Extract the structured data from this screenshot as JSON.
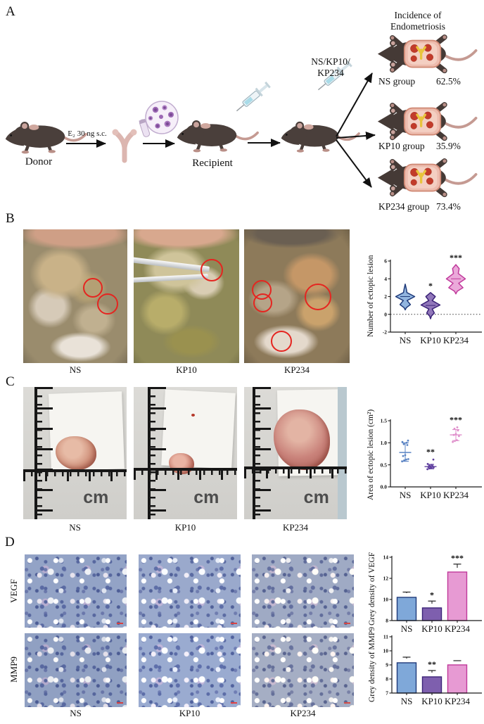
{
  "panels": {
    "A": {
      "label": "A",
      "donor": "Donor",
      "e2": "E₂ 30 ng s.c.",
      "recipient": "Recipient",
      "injection_line1": "NS/KP10/",
      "injection_line2": "KP234",
      "incidence_line1": "Incidence of",
      "incidence_line2": "Endometriosis",
      "groups": [
        {
          "name": "NS group",
          "value": "62.5%"
        },
        {
          "name": "KP10 group",
          "value": "35.9%"
        },
        {
          "name": "KP234 group",
          "value": "73.4%"
        }
      ]
    },
    "B": {
      "label": "B",
      "photo_labels": [
        "NS",
        "KP10",
        "KP234"
      ]
    },
    "C": {
      "label": "C",
      "photo_labels": [
        "NS",
        "KP10",
        "KP234"
      ],
      "ruler_unit": "cm"
    },
    "D": {
      "label": "D",
      "row_labels": [
        "VEGF",
        "MMP9"
      ],
      "col_labels": [
        "NS",
        "KP10",
        "KP234"
      ]
    }
  },
  "colors": {
    "series": [
      {
        "name": "NS",
        "fill": "#7fa8d9",
        "stroke": "#1f3a7a",
        "point": "#5b84c4"
      },
      {
        "name": "KP10",
        "fill": "#7e5fae",
        "stroke": "#3c2478",
        "point": "#5f3f9e"
      },
      {
        "name": "KP234",
        "fill": "#e79ad3",
        "stroke": "#c03a9b",
        "point": "#df8fcb"
      }
    ],
    "annotation_red": "#e52520",
    "arrow_black": "#111111"
  },
  "chart_data": [
    {
      "id": "ectopic-lesion-count-violin",
      "type": "violin",
      "title": "",
      "ylabel": "Number of ectopic lesion",
      "ylim": [
        -2,
        6
      ],
      "yticks": [
        "-2",
        "0",
        "2",
        "4",
        "6"
      ],
      "zero_line": true,
      "categories": [
        "NS",
        "KP10",
        "KP234"
      ],
      "significance": [
        "",
        "*",
        "***"
      ],
      "series": [
        {
          "name": "NS",
          "median": 2.0,
          "range": [
            0.5,
            3.4
          ],
          "profile": [
            [
              3.4,
              0
            ],
            [
              2.85,
              0.12
            ],
            [
              2.45,
              0.18
            ],
            [
              2.0,
              1.0
            ],
            [
              1.55,
              0.2
            ],
            [
              1.1,
              0.55
            ],
            [
              0.75,
              0.12
            ],
            [
              0.5,
              0
            ]
          ]
        },
        {
          "name": "KP10",
          "median": 1.0,
          "range": [
            -0.5,
            2.45
          ],
          "profile": [
            [
              2.45,
              0
            ],
            [
              2.0,
              0.5
            ],
            [
              1.55,
              0.18
            ],
            [
              1.05,
              1.0
            ],
            [
              0.6,
              0.18
            ],
            [
              0.15,
              0.4
            ],
            [
              -0.2,
              0.1
            ],
            [
              -0.5,
              0
            ]
          ]
        },
        {
          "name": "KP234",
          "median": 4.0,
          "range": [
            2.3,
            5.6
          ],
          "profile": [
            [
              5.6,
              0
            ],
            [
              5.15,
              0.35
            ],
            [
              4.6,
              0.25
            ],
            [
              4.0,
              1.0
            ],
            [
              3.5,
              0.3
            ],
            [
              3.0,
              0.75
            ],
            [
              2.6,
              0.15
            ],
            [
              2.3,
              0
            ]
          ]
        }
      ]
    },
    {
      "id": "ectopic-lesion-area-scatter",
      "type": "scatter",
      "title": "",
      "ylabel": "Area of ectopic lesion (cm²)",
      "ylim": [
        0,
        1.5
      ],
      "yticks": [
        "0.0",
        "0.5",
        "1.0",
        "1.5"
      ],
      "categories": [
        "NS",
        "KP10",
        "KP234"
      ],
      "significance": [
        "",
        "**",
        "***"
      ],
      "series": [
        {
          "name": "NS",
          "mean": 0.78,
          "sd_low": 0.58,
          "sd_high": 1.0,
          "points": [
            0.58,
            0.6,
            0.62,
            0.63,
            0.7,
            0.72,
            0.95,
            0.97,
            1.0,
            1.02,
            1.05
          ]
        },
        {
          "name": "KP10",
          "mean": 0.46,
          "sd_low": 0.41,
          "sd_high": 0.51,
          "points": [
            0.4,
            0.42,
            0.43,
            0.44,
            0.45,
            0.46,
            0.47,
            0.48,
            0.5,
            0.52,
            0.62
          ]
        },
        {
          "name": "KP234",
          "mean": 1.18,
          "sd_low": 1.05,
          "sd_high": 1.3,
          "points": [
            1.02,
            1.04,
            1.06,
            1.15,
            1.18,
            1.2,
            1.28,
            1.32,
            1.35
          ]
        }
      ]
    },
    {
      "id": "vegf-grey-density-bar",
      "type": "bar",
      "title": "",
      "ylabel": "Grey density  of VEGF",
      "ylim": [
        8,
        14
      ],
      "yticks": [
        "8",
        "10",
        "12",
        "14"
      ],
      "categories": [
        "NS",
        "KP10",
        "KP234"
      ],
      "values": [
        10.2,
        9.2,
        12.6
      ],
      "errors": [
        0.5,
        0.65,
        0.75
      ],
      "significance": [
        "",
        "*",
        "***"
      ]
    },
    {
      "id": "mmp9-grey-density-bar",
      "type": "bar",
      "title": "",
      "ylabel": "Grey density  of MMP9",
      "ylim": [
        7,
        11
      ],
      "yticks": [
        "7",
        "8",
        "9",
        "10",
        "11"
      ],
      "categories": [
        "NS",
        "KP10",
        "KP234"
      ],
      "values": [
        9.15,
        8.15,
        9.0
      ],
      "errors": [
        0.4,
        0.45,
        0.3
      ],
      "significance": [
        "",
        "**",
        ""
      ]
    }
  ]
}
